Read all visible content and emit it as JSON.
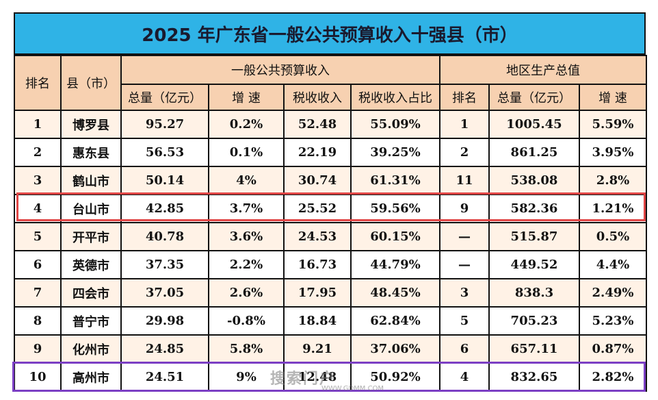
{
  "title": "2025 年广东省一般公共预算收入十强县（市）",
  "header": {
    "rank": "排名",
    "county": "县（市）",
    "budget_group": "一般公共预算收入",
    "gdp_group": "地区生产总值",
    "budget_total": "总量（亿元）",
    "budget_growth": "增 速",
    "tax_revenue": "税收收入",
    "tax_share": "税收收入占比",
    "gdp_rank": "排名",
    "gdp_total": "总量（亿元）",
    "gdp_growth": "增 速"
  },
  "rows": [
    {
      "rank": "1",
      "name": "博罗县",
      "total": "95.27",
      "growth": "0.2%",
      "tax": "52.48",
      "share": "55.09%",
      "gdp_rank": "1",
      "gdp": "1005.45",
      "gdp_growth": "5.59%"
    },
    {
      "rank": "2",
      "name": "惠东县",
      "total": "56.53",
      "growth": "0.1%",
      "tax": "22.19",
      "share": "39.25%",
      "gdp_rank": "2",
      "gdp": "861.25",
      "gdp_growth": "3.95%"
    },
    {
      "rank": "3",
      "name": "鹤山市",
      "total": "50.14",
      "growth": "4%",
      "tax": "30.74",
      "share": "61.31%",
      "gdp_rank": "11",
      "gdp": "538.08",
      "gdp_growth": "2.8%"
    },
    {
      "rank": "4",
      "name": "台山市",
      "total": "42.85",
      "growth": "3.7%",
      "tax": "25.52",
      "share": "59.56%",
      "gdp_rank": "9",
      "gdp": "582.36",
      "gdp_growth": "1.21%"
    },
    {
      "rank": "5",
      "name": "开平市",
      "total": "40.78",
      "growth": "3.6%",
      "tax": "24.53",
      "share": "60.15%",
      "gdp_rank": "—",
      "gdp": "515.87",
      "gdp_growth": "0.5%"
    },
    {
      "rank": "6",
      "name": "英德市",
      "total": "37.35",
      "growth": "2.2%",
      "tax": "16.73",
      "share": "44.79%",
      "gdp_rank": "—",
      "gdp": "449.52",
      "gdp_growth": "4.4%"
    },
    {
      "rank": "7",
      "name": "四会市",
      "total": "37.05",
      "growth": "2.6%",
      "tax": "17.95",
      "share": "48.45%",
      "gdp_rank": "3",
      "gdp": "838.3",
      "gdp_growth": "2.49%"
    },
    {
      "rank": "8",
      "name": "普宁市",
      "total": "29.98",
      "growth": "-0.8%",
      "tax": "18.84",
      "share": "62.84%",
      "gdp_rank": "5",
      "gdp": "705.23",
      "gdp_growth": "5.23%"
    },
    {
      "rank": "9",
      "name": "化州市",
      "total": "24.85",
      "growth": "5.8%",
      "tax": "9.21",
      "share": "37.06%",
      "gdp_rank": "6",
      "gdp": "657.11",
      "gdp_growth": "0.87%"
    },
    {
      "rank": "10",
      "name": "高州市",
      "total": "24.51",
      "growth": "9%",
      "tax": "12.48",
      "share": "50.92%",
      "gdp_rank": "4",
      "gdp": "832.65",
      "gdp_growth": "2.82%"
    }
  ],
  "watermark": {
    "text": "搜索门户",
    "sub": "WWW.GDMM.COM"
  },
  "colors": {
    "title_bg": "#2fb3e6",
    "header_bg": "#f7d1b1",
    "row_odd": "#fff2e6",
    "highlight_red": "#e04545",
    "highlight_purple": "#7b3fc4"
  }
}
